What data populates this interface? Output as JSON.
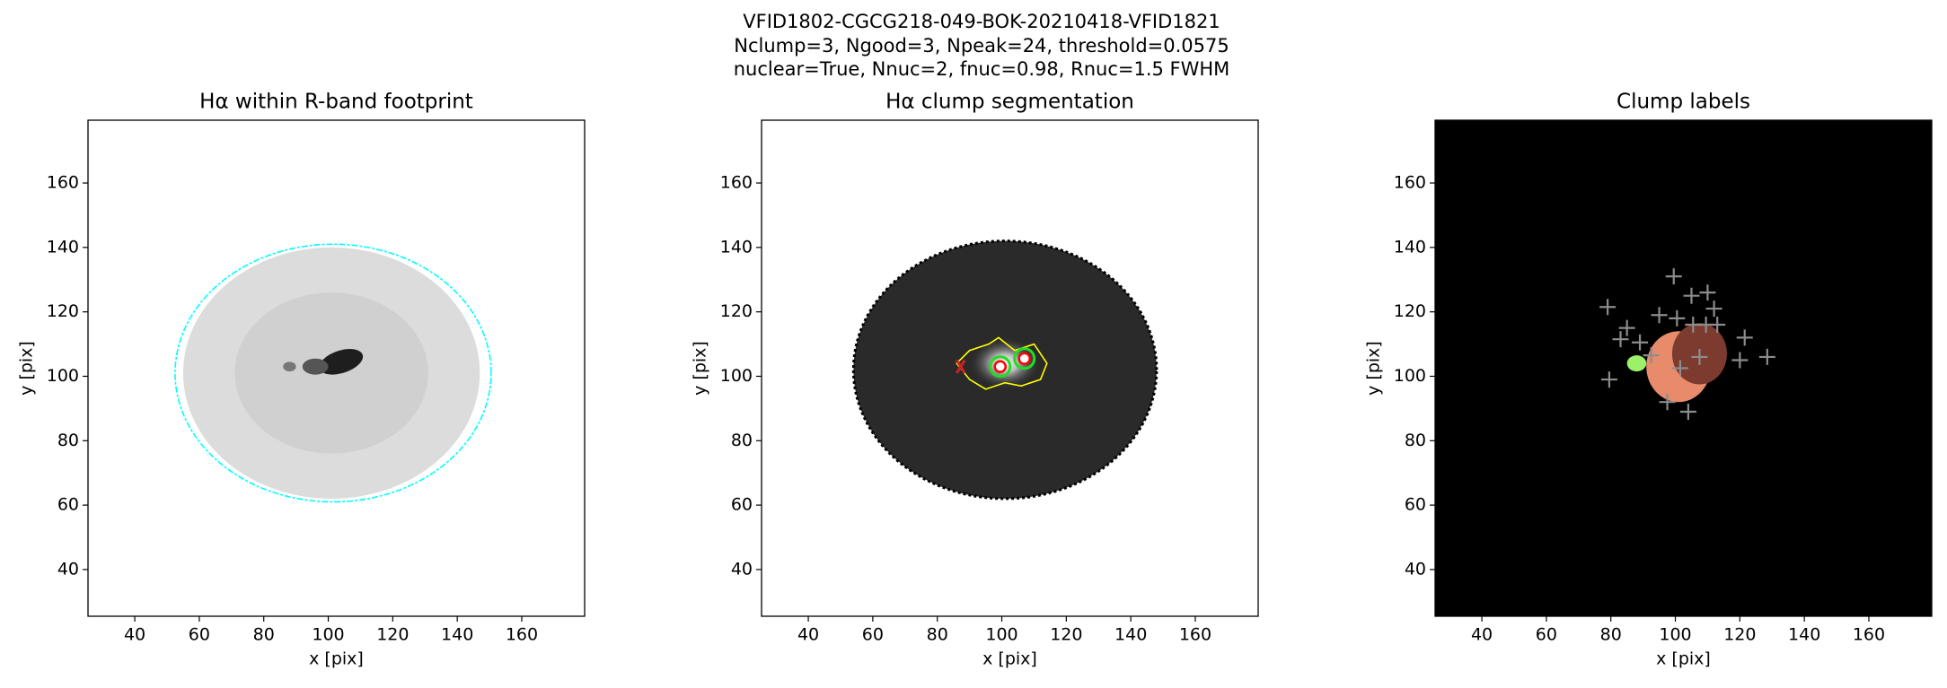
{
  "title": [
    "VFID1802-CGCG218-049-BOK-20210418-VFID1821",
    "Nclump=3, Ngood=3, Npeak=24, threshold=0.0575",
    "nuclear=True, Nnuc=2, fnuc=0.98, Rnuc=1.5 FWHM"
  ],
  "chart_data": [
    {
      "type": "image",
      "title": "Hα within R-band footprint",
      "xlabel": "x [pix]",
      "ylabel": "y [pix]",
      "xlim": [
        25.5,
        179.5
      ],
      "ylim": [
        25.5,
        179.5
      ],
      "xticks": [
        40,
        60,
        80,
        100,
        120,
        140,
        160
      ],
      "yticks": [
        40,
        60,
        80,
        100,
        120,
        140,
        160
      ]
    },
    {
      "type": "image",
      "title": "Hα clump segmentation",
      "xlabel": "x [pix]",
      "ylabel": "y [pix]",
      "xlim": [
        25.5,
        179.5
      ],
      "ylim": [
        25.5,
        179.5
      ],
      "xticks": [
        40,
        60,
        80,
        100,
        120,
        140,
        160
      ],
      "yticks": [
        40,
        60,
        80,
        100,
        120,
        140,
        160
      ],
      "markers": {
        "x": [
          99.5,
          107
        ],
        "y": [
          103,
          105.5
        ],
        "color": "#ff0000"
      }
    },
    {
      "type": "image",
      "title": "Clump labels",
      "xlabel": "x [pix]",
      "ylabel": "y [pix]",
      "xlim": [
        25.5,
        179.5
      ],
      "ylim": [
        25.5,
        179.5
      ],
      "xticks": [
        40,
        60,
        80,
        100,
        120,
        140,
        160
      ],
      "yticks": [
        40,
        60,
        80,
        100,
        120,
        140,
        160
      ],
      "markers": {
        "x": [
          79,
          99.5,
          85,
          83,
          89,
          95,
          100.5,
          105,
          110,
          112,
          105.5,
          109.5,
          113,
          121.5,
          128.5,
          120,
          107.5,
          101.5,
          92.5,
          79.5,
          97.5,
          104
        ],
        "y": [
          121.5,
          131,
          115,
          111.5,
          110.5,
          119,
          118,
          125,
          126,
          121,
          116,
          116,
          116,
          112,
          106,
          105,
          106,
          102.5,
          106.5,
          99,
          92,
          89
        ],
        "color": "#8c8c8c"
      }
    }
  ]
}
